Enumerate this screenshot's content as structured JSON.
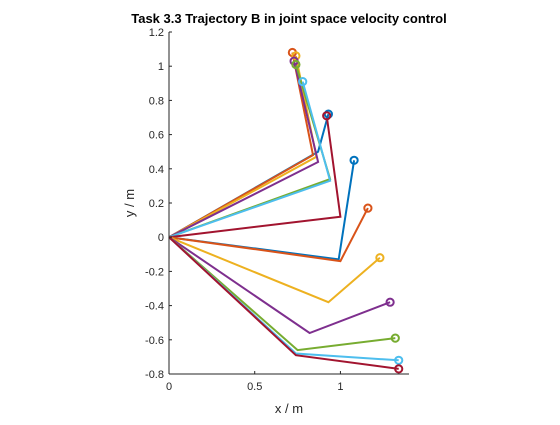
{
  "chart_data": {
    "type": "line",
    "title": "Task 3.3 Trajectory B in joint space velocity control",
    "xlabel": "x / m",
    "ylabel": "y / m",
    "xlim": [
      0,
      1.4
    ],
    "ylim": [
      -0.8,
      1.2
    ],
    "xticks": [
      0,
      0.5,
      1
    ],
    "yticks": [
      -0.8,
      -0.6,
      -0.4,
      -0.2,
      0,
      0.2,
      0.4,
      0.6,
      0.8,
      1,
      1.2
    ],
    "grid": false,
    "legend": "none",
    "base": [
      0,
      0
    ],
    "colors": [
      "#0072BD",
      "#D95319",
      "#EDB120",
      "#7E2F8E",
      "#77AC30",
      "#4DBEEE",
      "#A2142F"
    ],
    "arm_poses": [
      {
        "elbow": [
          0.87,
          0.5
        ],
        "end": [
          0.93,
          0.72
        ]
      },
      {
        "elbow": [
          0.84,
          0.48
        ],
        "end": [
          0.72,
          1.08
        ]
      },
      {
        "elbow": [
          0.86,
          0.47
        ],
        "end": [
          0.74,
          1.06
        ]
      },
      {
        "elbow": [
          0.87,
          0.44
        ],
        "end": [
          0.73,
          1.03
        ]
      },
      {
        "elbow": [
          0.94,
          0.34
        ],
        "end": [
          0.74,
          1.01
        ]
      },
      {
        "elbow": [
          0.94,
          0.33
        ],
        "end": [
          0.78,
          0.91
        ]
      },
      {
        "elbow": [
          1.0,
          0.12
        ],
        "end": [
          0.92,
          0.71
        ]
      },
      {
        "elbow": [
          0.99,
          -0.13
        ],
        "end": [
          1.08,
          0.45
        ]
      },
      {
        "elbow": [
          1.0,
          -0.14
        ],
        "end": [
          1.16,
          0.17
        ]
      },
      {
        "elbow": [
          0.93,
          -0.38
        ],
        "end": [
          1.23,
          -0.12
        ]
      },
      {
        "elbow": [
          0.82,
          -0.56
        ],
        "end": [
          1.29,
          -0.38
        ]
      },
      {
        "elbow": [
          0.75,
          -0.66
        ],
        "end": [
          1.32,
          -0.59
        ]
      },
      {
        "elbow": [
          0.74,
          -0.68
        ],
        "end": [
          1.34,
          -0.72
        ]
      },
      {
        "elbow": [
          0.74,
          -0.69
        ],
        "end": [
          1.34,
          -0.77
        ]
      }
    ]
  }
}
